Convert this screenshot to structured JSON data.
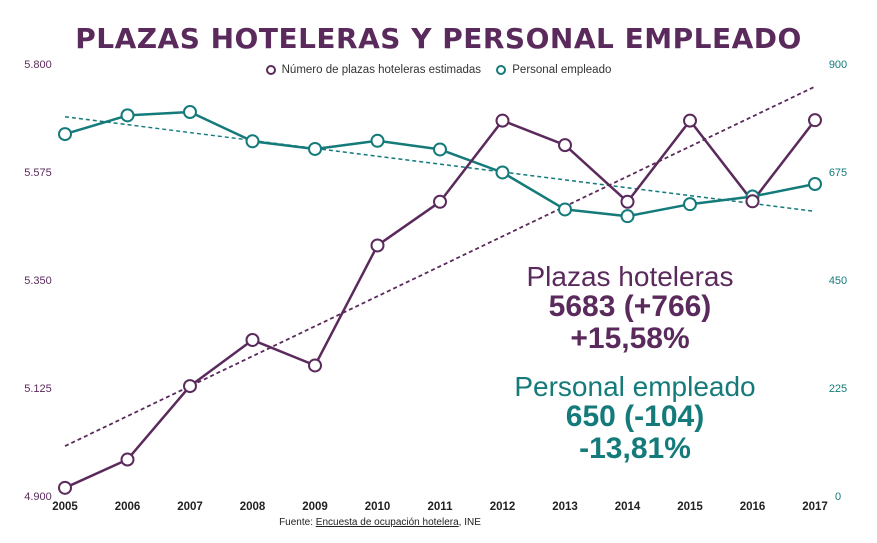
{
  "title": "PLAZAS HOTELERAS Y PERSONAL EMPLEADO",
  "source_prefix": "Fuente: ",
  "source_link": "Encuesta de ocupación hotelera",
  "source_suffix": ", INE",
  "annotations": {
    "plazas_label": "Plazas hoteleras",
    "plazas_value": "5683 (+766)",
    "plazas_pct": "+15,58%",
    "personal_label": "Personal empleado",
    "personal_value": "650 (-104)",
    "personal_pct": "-13,81%"
  },
  "colors": {
    "plazas": "#5b2a5c",
    "personal": "#147a7a"
  },
  "chart_data": {
    "type": "line",
    "x": [
      "2005",
      "2006",
      "2007",
      "2008",
      "2009",
      "2010",
      "2011",
      "2012",
      "2013",
      "2014",
      "2015",
      "2016",
      "2017"
    ],
    "y_left": {
      "ylim": [
        4900,
        5800
      ],
      "ticks": [
        "4.900",
        "5.125",
        "5.350",
        "5.575",
        "5.800"
      ]
    },
    "y_right": {
      "ylim": [
        0,
        900
      ],
      "ticks": [
        "0",
        "225",
        "450",
        "675",
        "900"
      ]
    },
    "legend_position": "top-center",
    "series": [
      {
        "name": "Número de plazas hoteleras estimadas",
        "axis": "left",
        "values": [
          4917,
          4976,
          5129,
          5225,
          5172,
          5422,
          5513,
          5682,
          5631,
          5513,
          5682,
          5514,
          5683
        ],
        "trend": [
          5004,
          5753
        ]
      },
      {
        "name": "Personal empleado",
        "axis": "right",
        "values": [
          754,
          793,
          800,
          739,
          723,
          740,
          722,
          674,
          597,
          583,
          608,
          624,
          650
        ],
        "trend": [
          790,
          593
        ]
      }
    ]
  }
}
